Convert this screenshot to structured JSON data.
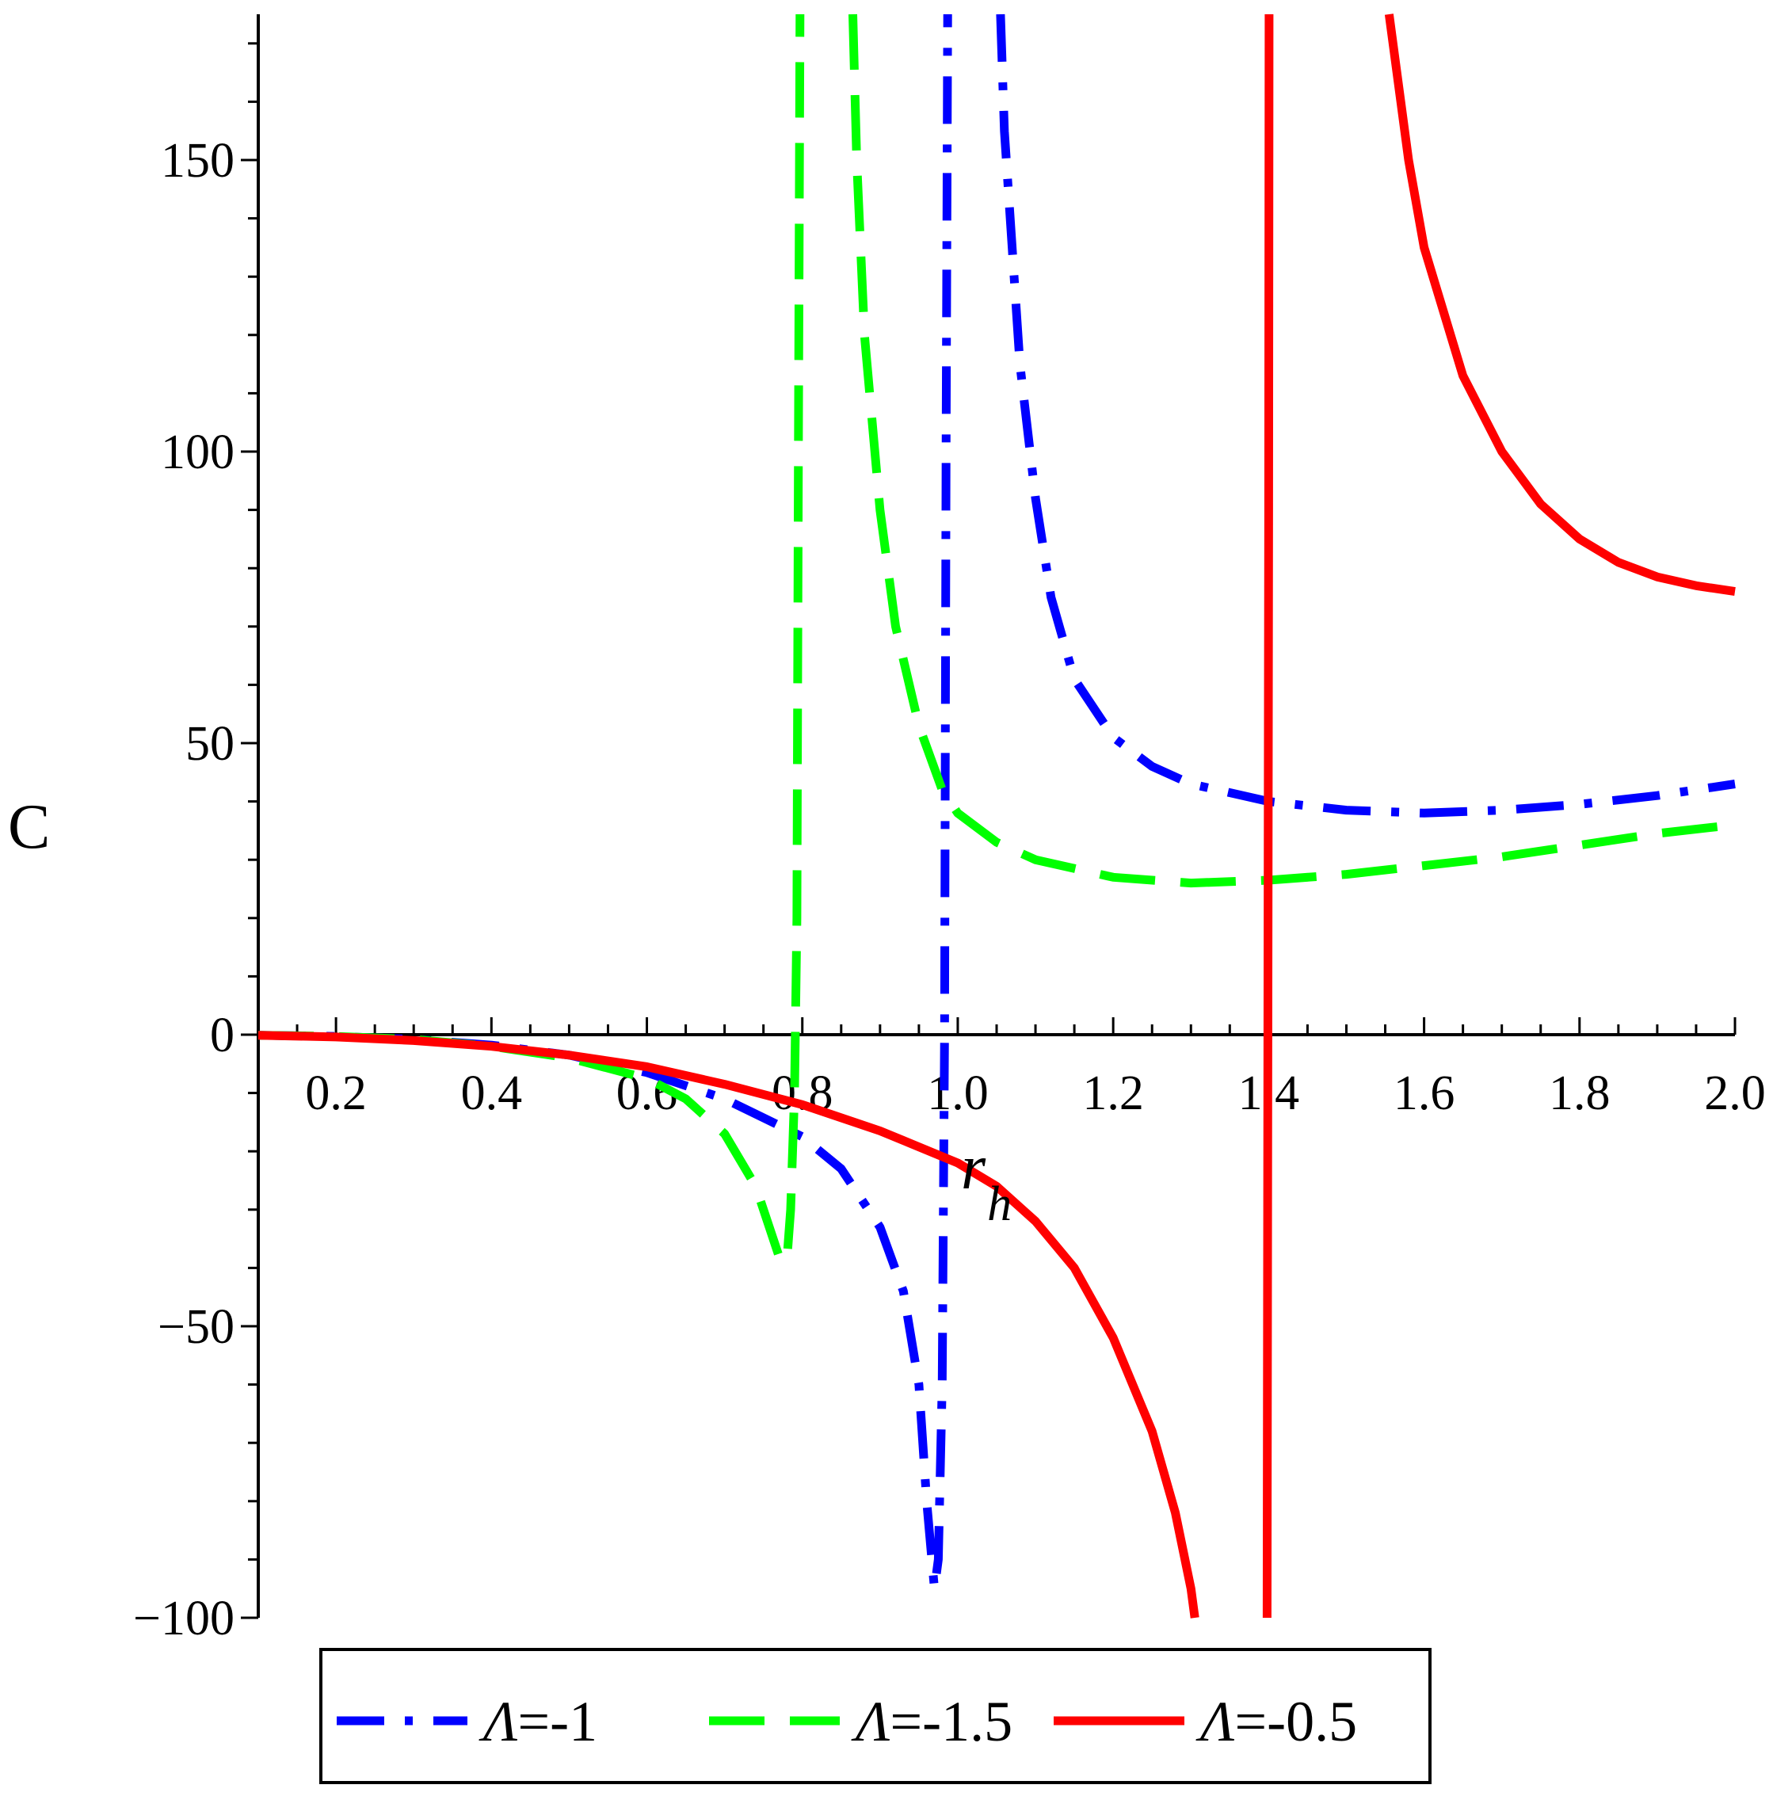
{
  "chart_data": {
    "type": "line",
    "title": "",
    "xlabel": "r",
    "xlabel_sub": "h",
    "ylabel": "C",
    "xlim": [
      0.1,
      2.0
    ],
    "ylim": [
      -100,
      175
    ],
    "x_ticks": [
      0.2,
      0.4,
      0.6,
      0.8,
      1.0,
      1.2,
      1.4,
      1.6,
      1.8,
      2.0
    ],
    "x_tick_labels": [
      "0.2",
      "0.4",
      "0.6",
      "0.8",
      "1.0",
      "1.2",
      "1.4",
      "1.6",
      "1.8",
      "2.0"
    ],
    "y_ticks": [
      -100,
      -50,
      0,
      50,
      100,
      150
    ],
    "y_tick_labels": [
      "−100",
      "−50",
      "0",
      "50",
      "100",
      "150"
    ],
    "grid": false,
    "legend_position": "bottom",
    "series": [
      {
        "name": "Λ=-1",
        "legend_symbol": "Λ",
        "legend_value": "=-1",
        "color": "#0000ff",
        "dash": "dash-dot",
        "segments": [
          [
            [
              0.1,
              -0.1
            ],
            [
              0.2,
              -0.3
            ],
            [
              0.3,
              -0.8
            ],
            [
              0.4,
              -1.8
            ],
            [
              0.5,
              -3.5
            ],
            [
              0.6,
              -6.5
            ],
            [
              0.7,
              -11
            ],
            [
              0.8,
              -17.5
            ],
            [
              0.85,
              -23
            ],
            [
              0.9,
              -33
            ],
            [
              0.93,
              -44
            ],
            [
              0.95,
              -60
            ],
            [
              0.96,
              -80
            ],
            [
              0.97,
              -95
            ],
            [
              0.975,
              -90
            ],
            [
              0.98,
              -60
            ],
            [
              0.983,
              0
            ],
            [
              0.985,
              100
            ],
            [
              0.987,
              175
            ]
          ],
          [
            [
              1.055,
              175
            ],
            [
              1.06,
              155
            ],
            [
              1.07,
              135
            ],
            [
              1.08,
              115
            ],
            [
              1.1,
              92
            ],
            [
              1.12,
              75
            ],
            [
              1.15,
              61
            ],
            [
              1.2,
              51
            ],
            [
              1.25,
              46
            ],
            [
              1.3,
              43
            ],
            [
              1.4,
              40
            ],
            [
              1.5,
              38.5
            ],
            [
              1.6,
              38
            ],
            [
              1.7,
              38.5
            ],
            [
              1.8,
              39.5
            ],
            [
              1.9,
              41
            ],
            [
              2.0,
              43
            ]
          ]
        ]
      },
      {
        "name": "Λ=-1.5",
        "legend_symbol": "Λ",
        "legend_value": "=-1.5",
        "color": "#00ff00",
        "dash": "dash",
        "segments": [
          [
            [
              0.1,
              -0.1
            ],
            [
              0.2,
              -0.3
            ],
            [
              0.3,
              -0.8
            ],
            [
              0.4,
              -2
            ],
            [
              0.5,
              -4
            ],
            [
              0.6,
              -7.5
            ],
            [
              0.65,
              -11
            ],
            [
              0.7,
              -17
            ],
            [
              0.74,
              -26
            ],
            [
              0.77,
              -38
            ],
            [
              0.78,
              -39
            ],
            [
              0.785,
              -30
            ],
            [
              0.79,
              -10
            ],
            [
              0.793,
              20
            ],
            [
              0.795,
              100
            ],
            [
              0.797,
              175
            ]
          ],
          [
            [
              0.865,
              175
            ],
            [
              0.87,
              150
            ],
            [
              0.88,
              120
            ],
            [
              0.9,
              90
            ],
            [
              0.92,
              70
            ],
            [
              0.95,
              53
            ],
            [
              0.98,
              42
            ],
            [
              1.0,
              38
            ],
            [
              1.05,
              33
            ],
            [
              1.1,
              30
            ],
            [
              1.2,
              27
            ],
            [
              1.3,
              26
            ],
            [
              1.4,
              26.5
            ],
            [
              1.5,
              27.5
            ],
            [
              1.6,
              29
            ],
            [
              1.7,
              30.5
            ],
            [
              1.8,
              32.5
            ],
            [
              1.9,
              34.5
            ],
            [
              2.0,
              36
            ]
          ]
        ]
      },
      {
        "name": "Λ=-0.5",
        "legend_symbol": "Λ",
        "legend_value": "=-0.5",
        "color": "#ff0000",
        "dash": "solid",
        "segments": [
          [
            [
              0.1,
              -0.1
            ],
            [
              0.2,
              -0.4
            ],
            [
              0.3,
              -1
            ],
            [
              0.4,
              -2
            ],
            [
              0.5,
              -3.5
            ],
            [
              0.6,
              -5.5
            ],
            [
              0.7,
              -8.5
            ],
            [
              0.8,
              -12
            ],
            [
              0.9,
              -16.5
            ],
            [
              1.0,
              -22
            ],
            [
              1.05,
              -26
            ],
            [
              1.1,
              -32
            ],
            [
              1.15,
              -40
            ],
            [
              1.2,
              -52
            ],
            [
              1.25,
              -68
            ],
            [
              1.28,
              -82
            ],
            [
              1.3,
              -95
            ],
            [
              1.305,
              -100
            ]
          ],
          [
            [
              1.398,
              -100
            ],
            [
              1.399,
              0
            ],
            [
              1.4,
              90
            ],
            [
              1.4005,
              175
            ]
          ],
          [
            [
              1.555,
              175
            ],
            [
              1.58,
              150
            ],
            [
              1.6,
              135
            ],
            [
              1.65,
              113
            ],
            [
              1.7,
              100
            ],
            [
              1.75,
              91
            ],
            [
              1.8,
              85
            ],
            [
              1.85,
              81
            ],
            [
              1.9,
              78.5
            ],
            [
              1.95,
              77
            ],
            [
              2.0,
              76
            ]
          ]
        ]
      }
    ]
  }
}
